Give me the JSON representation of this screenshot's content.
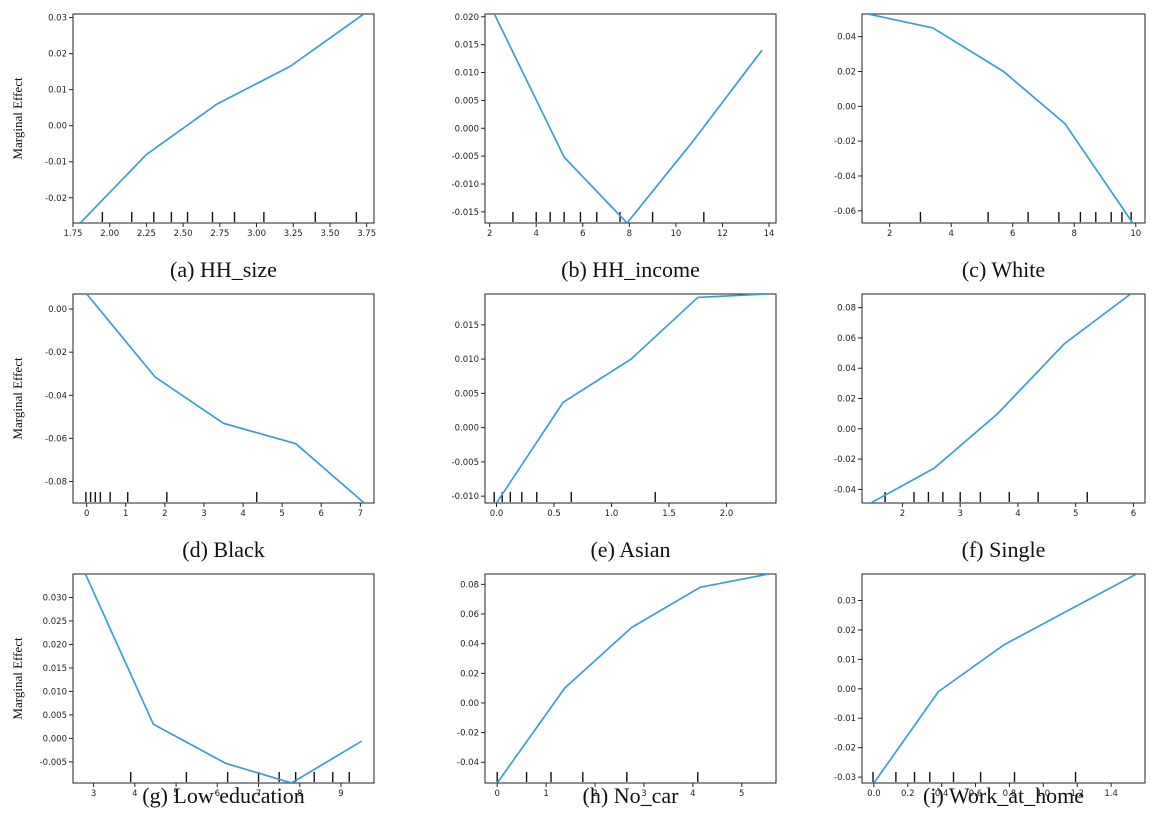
{
  "colors": {
    "line": "#3a9fd0",
    "frame": "#222222",
    "rug": "#111111"
  },
  "ylabel_text": "Marginal Effect",
  "chart_data": [
    {
      "type": "line",
      "caption": "(a) HH_size",
      "ylabel": "Marginal Effect",
      "xlim": [
        1.75,
        3.8
      ],
      "ylim": [
        -0.027,
        0.031
      ],
      "xticks": [
        1.75,
        2.0,
        2.25,
        2.5,
        2.75,
        3.0,
        3.25,
        3.5,
        3.75
      ],
      "xtick_labels": [
        "1.75",
        "2.00",
        "2.25",
        "2.50",
        "2.75",
        "3.00",
        "3.25",
        "3.50",
        "3.75"
      ],
      "yticks": [
        -0.02,
        -0.01,
        0.0,
        0.01,
        0.02,
        0.03
      ],
      "ytick_labels": [
        "-0.02",
        "-0.01",
        "0.00",
        "0.01",
        "0.02",
        "0.03"
      ],
      "series": [
        {
          "x": [
            1.8,
            2.25,
            2.73,
            3.23,
            3.73
          ],
          "y": [
            -0.027,
            -0.008,
            0.006,
            0.0165,
            0.031
          ]
        }
      ],
      "rug": [
        1.95,
        2.15,
        2.3,
        2.42,
        2.53,
        2.7,
        2.85,
        3.05,
        3.4,
        3.68
      ]
    },
    {
      "type": "line",
      "caption": "(b) HH_income",
      "ylabel": "",
      "xlim": [
        1.8,
        14.3
      ],
      "ylim": [
        -0.017,
        0.0205
      ],
      "xticks": [
        2,
        4,
        6,
        8,
        10,
        12,
        14
      ],
      "xtick_labels": [
        "2",
        "4",
        "6",
        "8",
        "10",
        "12",
        "14"
      ],
      "yticks": [
        -0.015,
        -0.01,
        -0.005,
        0.0,
        0.005,
        0.01,
        0.015,
        0.02
      ],
      "ytick_labels": [
        "-0.015",
        "-0.010",
        "-0.005",
        "0.000",
        "0.005",
        "0.010",
        "0.015",
        "0.020"
      ],
      "series": [
        {
          "x": [
            2.2,
            5.2,
            7.9,
            10.7,
            13.7
          ],
          "y": [
            0.0205,
            -0.0052,
            -0.017,
            -0.0025,
            0.014
          ]
        }
      ],
      "rug": [
        3.0,
        4.0,
        4.6,
        5.2,
        5.9,
        6.6,
        7.6,
        9.0,
        11.2
      ]
    },
    {
      "type": "line",
      "caption": "(c) White",
      "ylabel": "",
      "xlim": [
        1.1,
        10.3
      ],
      "ylim": [
        -0.067,
        0.053
      ],
      "xticks": [
        2,
        4,
        6,
        8,
        10
      ],
      "xtick_labels": [
        "2",
        "4",
        "6",
        "8",
        "10"
      ],
      "yticks": [
        -0.06,
        -0.04,
        -0.02,
        0.0,
        0.02,
        0.04
      ],
      "ytick_labels": [
        "-0.06",
        "-0.04",
        "-0.02",
        "0.00",
        "0.02",
        "0.04"
      ],
      "series": [
        {
          "x": [
            1.3,
            3.4,
            5.7,
            7.7,
            9.9
          ],
          "y": [
            0.053,
            0.045,
            0.02,
            -0.01,
            -0.067
          ]
        }
      ],
      "rug": [
        3.0,
        5.2,
        6.5,
        7.5,
        8.2,
        8.7,
        9.2,
        9.55,
        9.85
      ]
    },
    {
      "type": "line",
      "caption": "(d) Black",
      "ylabel": "Marginal Effect",
      "xlim": [
        -0.35,
        7.35
      ],
      "ylim": [
        -0.09,
        0.007
      ],
      "xticks": [
        0,
        1,
        2,
        3,
        4,
        5,
        6,
        7
      ],
      "xtick_labels": [
        "0",
        "1",
        "2",
        "3",
        "4",
        "5",
        "6",
        "7"
      ],
      "yticks": [
        -0.08,
        -0.06,
        -0.04,
        -0.02,
        0.0
      ],
      "ytick_labels": [
        "-0.08",
        "-0.06",
        "-0.04",
        "-0.02",
        "0.00"
      ],
      "series": [
        {
          "x": [
            0.0,
            1.75,
            3.5,
            5.35,
            7.1
          ],
          "y": [
            0.007,
            -0.0315,
            -0.053,
            -0.0625,
            -0.09
          ]
        }
      ],
      "rug": [
        -0.02,
        0.1,
        0.22,
        0.35,
        0.6,
        1.05,
        2.05,
        4.35
      ]
    },
    {
      "type": "line",
      "caption": "(e) Asian",
      "ylabel": "",
      "xlim": [
        -0.1,
        2.43
      ],
      "ylim": [
        -0.011,
        0.0195
      ],
      "xticks": [
        0.0,
        0.5,
        1.0,
        1.5,
        2.0
      ],
      "xtick_labels": [
        "0.0",
        "0.5",
        "1.0",
        "1.5",
        "2.0"
      ],
      "yticks": [
        -0.01,
        -0.005,
        0.0,
        0.005,
        0.01,
        0.015
      ],
      "ytick_labels": [
        "-0.010",
        "-0.005",
        "0.000",
        "0.005",
        "0.010",
        "0.015"
      ],
      "series": [
        {
          "x": [
            0.0,
            0.58,
            1.17,
            1.75,
            2.35
          ],
          "y": [
            -0.011,
            0.0037,
            0.01,
            0.019,
            0.0195
          ]
        }
      ],
      "rug": [
        -0.02,
        0.05,
        0.12,
        0.22,
        0.35,
        0.65,
        1.38
      ]
    },
    {
      "type": "line",
      "caption": "(f) Single",
      "ylabel": "",
      "xlim": [
        1.3,
        6.2
      ],
      "ylim": [
        -0.049,
        0.089
      ],
      "xticks": [
        2,
        3,
        4,
        5,
        6
      ],
      "xtick_labels": [
        "2",
        "3",
        "4",
        "5",
        "6"
      ],
      "yticks": [
        -0.04,
        -0.02,
        0.0,
        0.02,
        0.04,
        0.06,
        0.08
      ],
      "ytick_labels": [
        "-0.04",
        "-0.02",
        "0.00",
        "0.02",
        "0.04",
        "0.06",
        "0.08"
      ],
      "series": [
        {
          "x": [
            1.45,
            2.55,
            3.65,
            4.8,
            5.95
          ],
          "y": [
            -0.049,
            -0.026,
            0.01,
            0.056,
            0.089
          ]
        }
      ],
      "rug": [
        1.7,
        2.2,
        2.45,
        2.7,
        3.0,
        3.35,
        3.85,
        4.35,
        5.2
      ]
    },
    {
      "type": "line",
      "caption": "(g) Low education",
      "ylabel": "Marginal Effect",
      "xlim": [
        2.5,
        9.8
      ],
      "ylim": [
        -0.0095,
        0.035
      ],
      "xticks": [
        3,
        4,
        5,
        6,
        7,
        8,
        9
      ],
      "xtick_labels": [
        "3",
        "4",
        "5",
        "6",
        "7",
        "8",
        "9"
      ],
      "yticks": [
        -0.005,
        0.0,
        0.005,
        0.01,
        0.015,
        0.02,
        0.025,
        0.03
      ],
      "ytick_labels": [
        "-0.005",
        "0.000",
        "0.005",
        "0.010",
        "0.015",
        "0.020",
        "0.025",
        "0.030"
      ],
      "series": [
        {
          "x": [
            2.8,
            4.45,
            6.2,
            7.8,
            9.5
          ],
          "y": [
            0.035,
            0.003,
            -0.0053,
            -0.0095,
            -0.0006
          ]
        }
      ],
      "rug": [
        3.9,
        5.25,
        6.25,
        7.0,
        7.5,
        7.9,
        8.35,
        8.8,
        9.2
      ]
    },
    {
      "type": "line",
      "caption": "(h) No_car",
      "ylabel": "",
      "xlim": [
        -0.25,
        5.7
      ],
      "ylim": [
        -0.054,
        0.087
      ],
      "xticks": [
        0,
        1,
        2,
        3,
        4,
        5
      ],
      "xtick_labels": [
        "0",
        "1",
        "2",
        "3",
        "4",
        "5"
      ],
      "yticks": [
        -0.04,
        -0.02,
        0.0,
        0.02,
        0.04,
        0.06,
        0.08
      ],
      "ytick_labels": [
        "-0.04",
        "-0.02",
        "0.00",
        "0.02",
        "0.04",
        "0.06",
        "0.08"
      ],
      "series": [
        {
          "x": [
            0.0,
            1.38,
            2.75,
            4.15,
            5.55
          ],
          "y": [
            -0.054,
            0.01,
            0.051,
            0.078,
            0.087
          ]
        }
      ],
      "rug": [
        0.0,
        0.6,
        1.1,
        1.75,
        2.65,
        4.1
      ]
    },
    {
      "type": "line",
      "caption": "(i) Work_at_home",
      "ylabel": "",
      "xlim": [
        -0.07,
        1.6
      ],
      "ylim": [
        -0.032,
        0.039
      ],
      "xticks": [
        0.0,
        0.2,
        0.4,
        0.6,
        0.8,
        1.0,
        1.2,
        1.4
      ],
      "xtick_labels": [
        "0.0",
        "0.2",
        "0.4",
        "0.6",
        "0.8",
        "1.0",
        "1.2",
        "1.4"
      ],
      "yticks": [
        -0.03,
        -0.02,
        -0.01,
        0.0,
        0.01,
        0.02,
        0.03
      ],
      "ytick_labels": [
        "-0.03",
        "-0.02",
        "-0.01",
        "0.00",
        "0.01",
        "0.02",
        "0.03"
      ],
      "series": [
        {
          "x": [
            0.0,
            0.38,
            0.77,
            1.16,
            1.55
          ],
          "y": [
            -0.032,
            -0.001,
            0.015,
            0.027,
            0.039
          ]
        }
      ],
      "rug": [
        -0.005,
        0.13,
        0.24,
        0.33,
        0.47,
        0.63,
        0.83,
        1.19
      ]
    }
  ]
}
